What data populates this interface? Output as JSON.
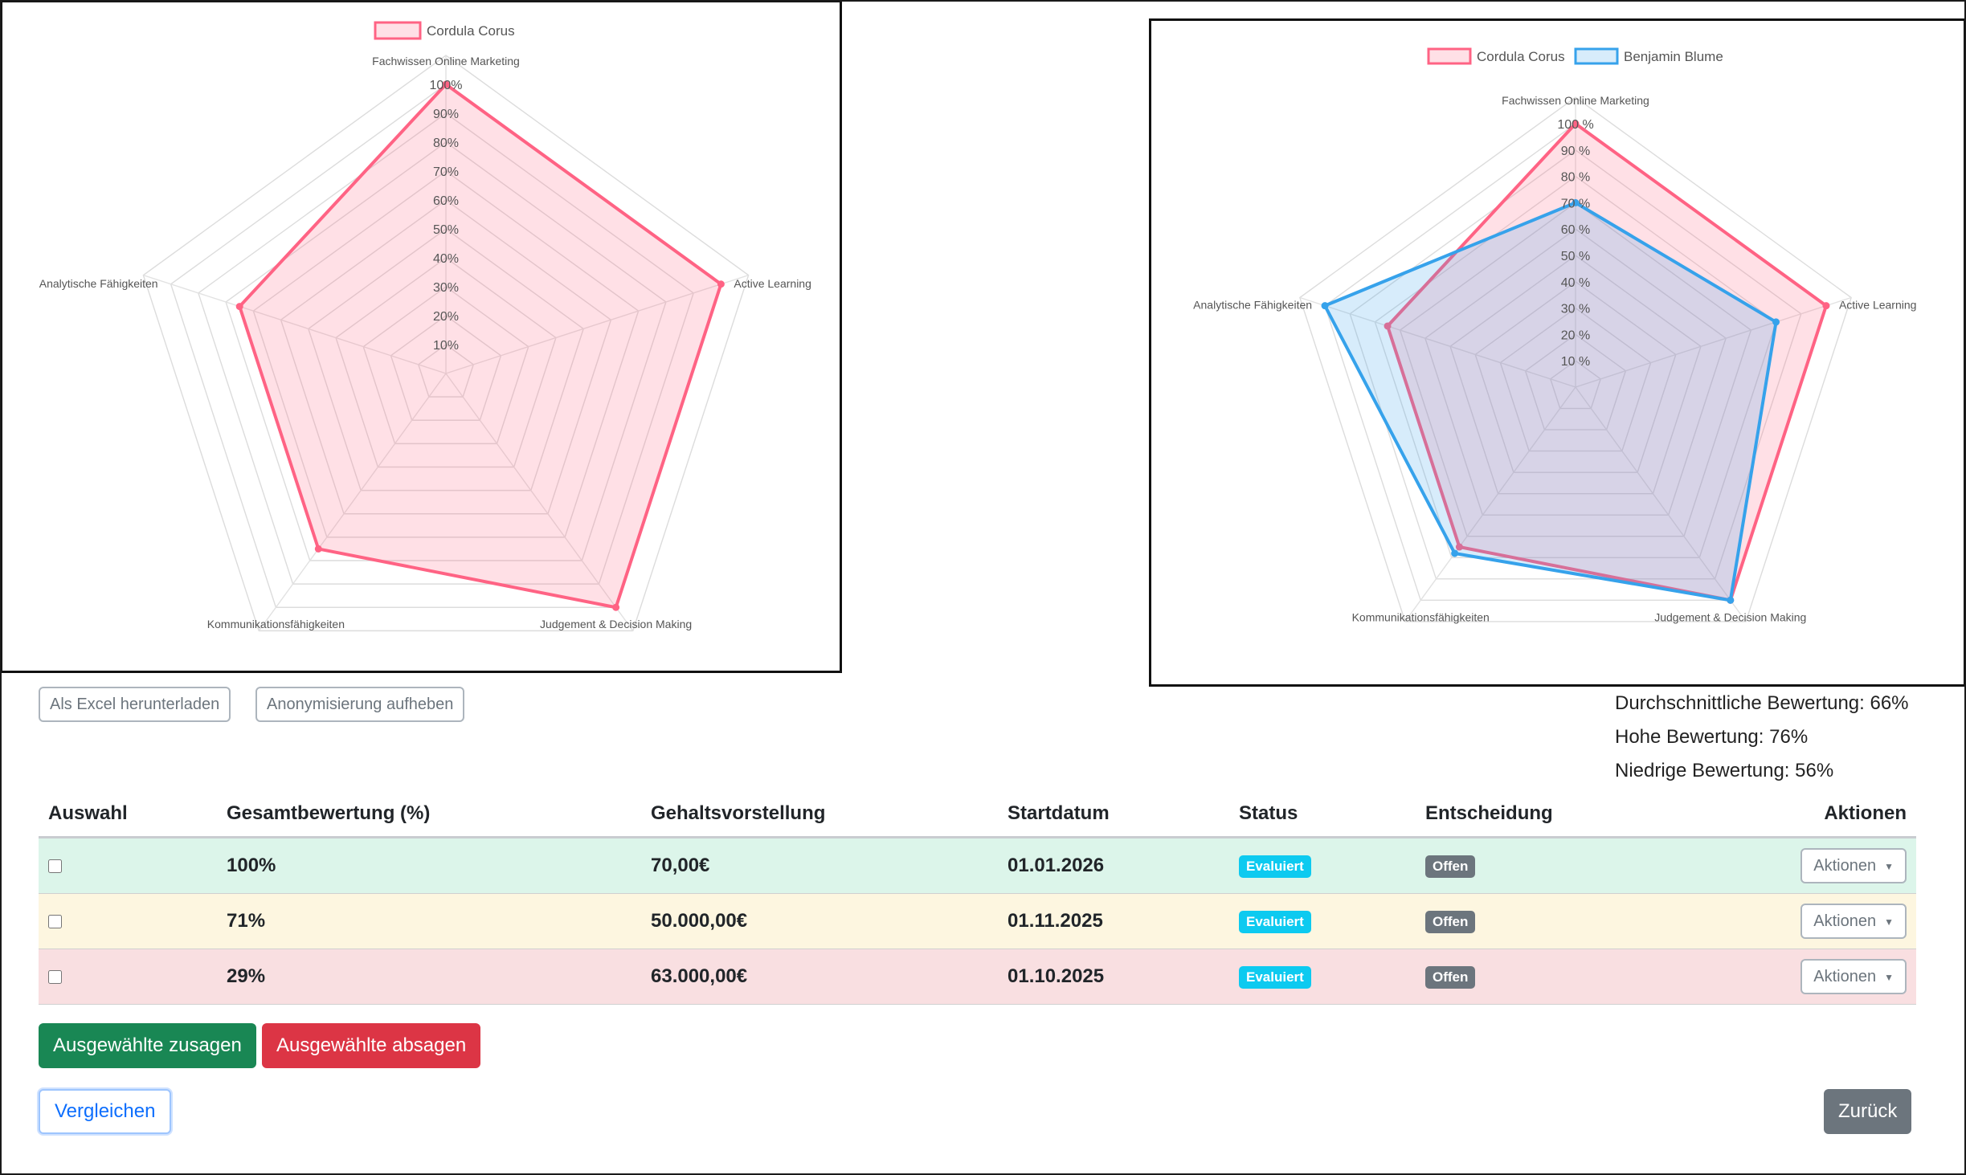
{
  "charts": [
    {
      "type": "radar",
      "legend": [
        {
          "name": "Cordula Corus",
          "color": "#ff6384"
        }
      ],
      "axes": [
        "Fachwissen Online Marketing",
        "Active Learning",
        "Judgement & Decision Making",
        "Kommunikationsfähigkeiten",
        "Analytische Fähigkeiten"
      ],
      "tick_labels": [
        "10%",
        "20%",
        "30%",
        "40%",
        "50%",
        "60%",
        "70%",
        "80%",
        "90%",
        "100%"
      ],
      "rmax": 100,
      "series": [
        {
          "name": "Cordula Corus",
          "color": "#ff6384",
          "values": [
            100,
            100,
            100,
            75,
            75
          ]
        }
      ]
    },
    {
      "type": "radar",
      "legend": [
        {
          "name": "Cordula Corus",
          "color": "#ff6384"
        },
        {
          "name": "Benjamin Blume",
          "color": "#36a2eb"
        }
      ],
      "axes": [
        "Fachwissen Online Marketing",
        "Active Learning",
        "Judgement & Decision Making",
        "Kommunikationsfähigkeiten",
        "Analytische Fähigkeiten"
      ],
      "tick_labels": [
        "10 %",
        "20 %",
        "30 %",
        "40 %",
        "50 %",
        "60 %",
        "70 %",
        "80 %",
        "90 %",
        "100 %"
      ],
      "rmax": 100,
      "series": [
        {
          "name": "Cordula Corus",
          "color": "#ff6384",
          "values": [
            100,
            100,
            100,
            75,
            75
          ]
        },
        {
          "name": "Benjamin Blume",
          "color": "#36a2eb",
          "values": [
            70,
            80,
            100,
            78,
            100
          ]
        }
      ]
    }
  ],
  "toolbar": {
    "excel_label": "Als Excel herunterladen",
    "anon_label": "Anonymisierung aufheben"
  },
  "stats": {
    "average": "Durchschnittliche Bewertung: 66%",
    "high": "Hohe Bewertung: 76%",
    "low": "Niedrige Bewertung: 56%"
  },
  "table": {
    "headers": {
      "select": "Auswahl",
      "score": "Gesamtbewertung (%)",
      "salary": "Gehaltsvorstellung",
      "start": "Startdatum",
      "status": "Status",
      "decision": "Entscheidung",
      "actions": "Aktionen"
    },
    "rows": [
      {
        "score": "100%",
        "salary": "70,00€",
        "start": "01.01.2026",
        "status": "Evaluiert",
        "decision": "Offen",
        "action": "Aktionen"
      },
      {
        "score": "71%",
        "salary": "50.000,00€",
        "start": "01.11.2025",
        "status": "Evaluiert",
        "decision": "Offen",
        "action": "Aktionen"
      },
      {
        "score": "29%",
        "salary": "63.000,00€",
        "start": "01.10.2025",
        "status": "Evaluiert",
        "decision": "Offen",
        "action": "Aktionen"
      }
    ]
  },
  "buttons": {
    "accept": "Ausgewählte zusagen",
    "reject": "Ausgewählte absagen",
    "compare": "Vergleichen",
    "back": "Zurück"
  },
  "colors": {
    "row_green": "#dcf5ea",
    "row_yellow": "#fdf6e0",
    "row_red": "#f9dfe1",
    "success": "#198754",
    "danger": "#dc3545",
    "info": "#0dcaf0",
    "secondary": "#6c757d"
  }
}
